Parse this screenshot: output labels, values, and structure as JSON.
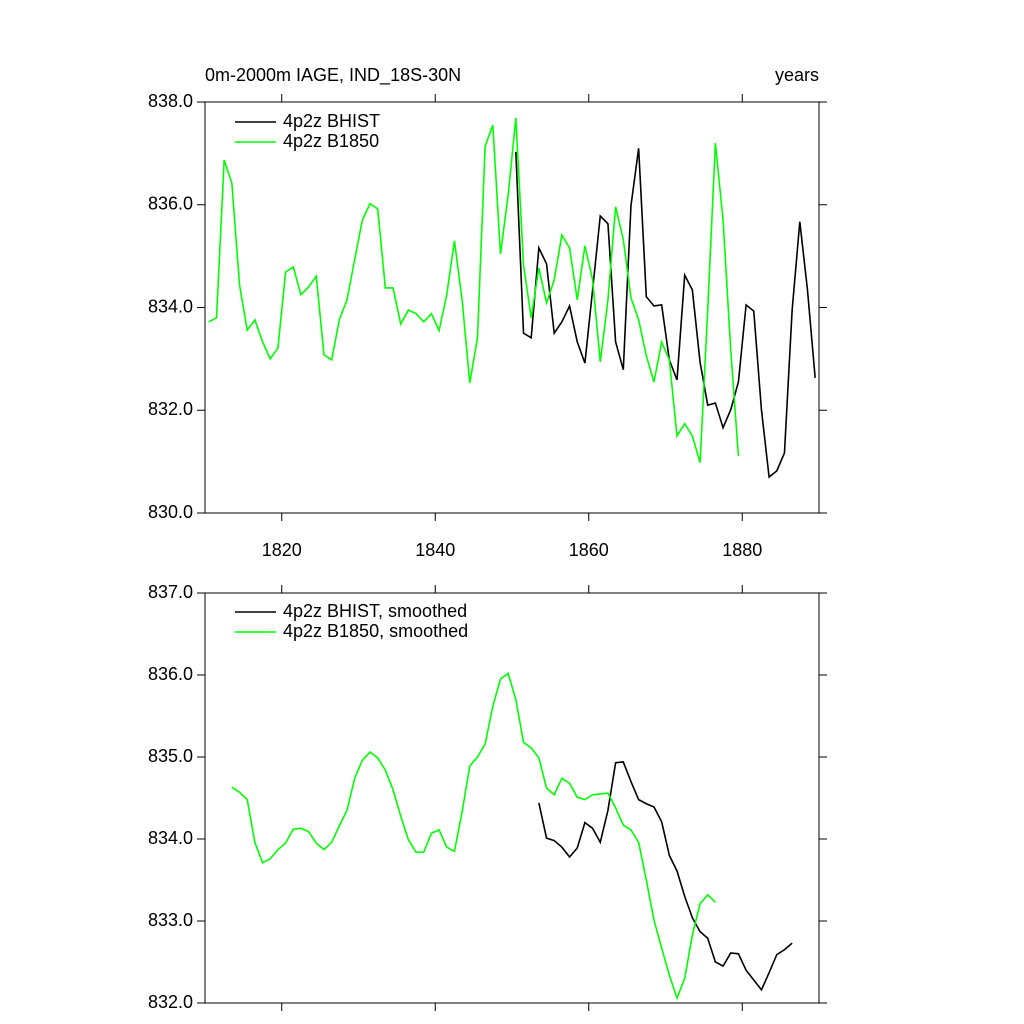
{
  "chart_data": [
    {
      "type": "line",
      "title": "0m-2000m IAGE, IND_18S-30N",
      "subtitle": "years",
      "xlim": [
        1810,
        1890
      ],
      "xticks": [
        1820,
        1840,
        1860,
        1880
      ],
      "ylim": [
        830,
        838
      ],
      "yticks": [
        {
          "value": 830,
          "label": "830.0"
        },
        {
          "value": 832,
          "label": "832.0"
        },
        {
          "value": 834,
          "label": "834.0"
        },
        {
          "value": 836,
          "label": "836.0"
        },
        {
          "value": 838,
          "label": "838.0"
        }
      ],
      "series": [
        {
          "name": "4p2z BHIST",
          "color": "#000000",
          "x": [
            1850.5,
            1851.5,
            1852.5,
            1853.5,
            1854.5,
            1855.5,
            1856.5,
            1857.5,
            1858.5,
            1859.5,
            1860.5,
            1861.5,
            1862.5,
            1863.5,
            1864.5,
            1865.5,
            1866.5,
            1867.5,
            1868.5,
            1869.5,
            1870.5,
            1871.5,
            1872.5,
            1873.5,
            1874.5,
            1875.5,
            1876.5,
            1877.5,
            1878.5,
            1879.5,
            1880.5,
            1881.5,
            1882.5,
            1883.5,
            1884.5,
            1885.5,
            1886.5,
            1887.5,
            1888.5,
            1889.5
          ],
          "values": [
            837.03,
            833.5,
            833.41,
            835.16,
            834.85,
            833.5,
            833.72,
            834.03,
            833.33,
            832.92,
            834.34,
            835.78,
            835.63,
            833.33,
            832.79,
            835.98,
            837.1,
            834.21,
            834.03,
            834.05,
            832.98,
            832.59,
            834.63,
            834.34,
            832.94,
            832.1,
            832.14,
            831.66,
            832.01,
            832.55,
            834.05,
            833.93,
            832.01,
            830.7,
            830.82,
            831.17,
            833.95,
            835.67,
            834.34,
            832.63
          ]
        },
        {
          "name": "4p2z B1850",
          "color": "#00ff00",
          "x": [
            1810.5,
            1811.5,
            1812.5,
            1813.5,
            1814.5,
            1815.5,
            1816.5,
            1817.5,
            1818.5,
            1819.5,
            1820.5,
            1821.5,
            1822.5,
            1823.5,
            1824.5,
            1825.5,
            1826.5,
            1827.5,
            1828.5,
            1829.5,
            1830.5,
            1831.5,
            1832.5,
            1833.5,
            1834.5,
            1835.5,
            1836.5,
            1837.5,
            1838.5,
            1839.5,
            1840.5,
            1841.5,
            1842.5,
            1843.5,
            1844.5,
            1845.5,
            1846.5,
            1847.5,
            1848.5,
            1849.5,
            1850.5,
            1851.5,
            1852.5,
            1853.5,
            1854.5,
            1855.5,
            1856.5,
            1857.5,
            1858.5,
            1859.5,
            1860.5,
            1861.5,
            1862.5,
            1863.5,
            1864.5,
            1865.5,
            1866.5,
            1867.5,
            1868.5,
            1869.5,
            1870.5,
            1871.5,
            1872.5,
            1873.5,
            1874.5,
            1875.5,
            1876.5,
            1877.5,
            1878.5,
            1879.5
          ],
          "values": [
            833.72,
            833.8,
            836.87,
            836.42,
            834.44,
            833.56,
            833.76,
            833.33,
            833.0,
            833.21,
            834.69,
            834.79,
            834.25,
            834.4,
            834.61,
            833.08,
            832.98,
            833.76,
            834.15,
            834.93,
            835.7,
            836.02,
            835.92,
            834.38,
            834.38,
            833.68,
            833.95,
            833.88,
            833.72,
            833.88,
            833.55,
            834.25,
            835.3,
            834.15,
            832.53,
            833.41,
            837.14,
            837.55,
            835.04,
            836.19,
            837.69,
            834.83,
            833.8,
            834.77,
            834.09,
            834.54,
            835.41,
            835.16,
            834.15,
            835.2,
            834.54,
            832.94,
            834.15,
            835.96,
            835.32,
            834.19,
            833.76,
            833.06,
            832.55,
            833.33,
            832.98,
            831.5,
            831.74,
            831.5,
            830.98,
            833.95,
            837.2,
            835.7,
            833.17,
            831.11
          ]
        }
      ]
    },
    {
      "type": "line",
      "xlim": [
        1810,
        1890
      ],
      "xticks": [
        1820,
        1840,
        1860,
        1880
      ],
      "ylim": [
        832,
        837
      ],
      "yticks": [
        {
          "value": 832,
          "label": "832.0"
        },
        {
          "value": 833,
          "label": "833.0"
        },
        {
          "value": 834,
          "label": "834.0"
        },
        {
          "value": 835,
          "label": "835.0"
        },
        {
          "value": 836,
          "label": "836.0"
        },
        {
          "value": 837,
          "label": "837.0"
        }
      ],
      "series": [
        {
          "name": "4p2z BHIST, smoothed",
          "color": "#000000",
          "x": [
            1853.5,
            1854.5,
            1855.5,
            1856.5,
            1857.5,
            1858.5,
            1859.5,
            1860.5,
            1861.5,
            1862.5,
            1863.5,
            1864.5,
            1865.5,
            1866.5,
            1867.5,
            1868.5,
            1869.5,
            1870.5,
            1871.5,
            1872.5,
            1873.5,
            1874.5,
            1875.5,
            1876.5,
            1877.5,
            1878.5,
            1879.5,
            1880.5,
            1881.5,
            1882.5,
            1883.5,
            1884.5,
            1885.5,
            1886.5
          ],
          "values": [
            834.44,
            834.01,
            833.98,
            833.9,
            833.78,
            833.89,
            834.2,
            834.13,
            833.96,
            834.35,
            834.93,
            834.94,
            834.7,
            834.48,
            834.43,
            834.39,
            834.21,
            833.8,
            833.61,
            833.3,
            833.04,
            832.87,
            832.79,
            832.5,
            832.45,
            832.61,
            832.6,
            832.4,
            832.28,
            832.16,
            832.37,
            832.59,
            832.65,
            832.73
          ]
        },
        {
          "name": "4p2z B1850, smoothed",
          "color": "#00ff00",
          "x": [
            1813.5,
            1814.5,
            1815.5,
            1816.5,
            1817.5,
            1818.5,
            1819.5,
            1820.5,
            1821.5,
            1822.5,
            1823.5,
            1824.5,
            1825.5,
            1826.5,
            1827.5,
            1828.5,
            1829.5,
            1830.5,
            1831.5,
            1832.5,
            1833.5,
            1834.5,
            1835.5,
            1836.5,
            1837.5,
            1838.5,
            1839.5,
            1840.5,
            1841.5,
            1842.5,
            1843.5,
            1844.5,
            1845.5,
            1846.5,
            1847.5,
            1848.5,
            1849.5,
            1850.5,
            1851.5,
            1852.5,
            1853.5,
            1854.5,
            1855.5,
            1856.5,
            1857.5,
            1858.5,
            1859.5,
            1860.5,
            1861.5,
            1862.5,
            1863.5,
            1864.5,
            1865.5,
            1866.5,
            1867.5,
            1868.5,
            1869.5,
            1870.5,
            1871.5,
            1872.5,
            1873.5,
            1874.5,
            1875.5,
            1876.5
          ],
          "values": [
            834.63,
            834.57,
            834.48,
            833.96,
            833.71,
            833.76,
            833.87,
            833.95,
            834.12,
            834.13,
            834.09,
            833.95,
            833.87,
            833.96,
            834.16,
            834.35,
            834.74,
            834.96,
            835.06,
            834.99,
            834.84,
            834.6,
            834.28,
            833.99,
            833.84,
            833.84,
            834.07,
            834.11,
            833.9,
            833.85,
            834.33,
            834.89,
            835.0,
            835.16,
            835.62,
            835.95,
            836.02,
            835.7,
            835.18,
            835.11,
            834.99,
            834.62,
            834.54,
            834.74,
            834.68,
            834.51,
            834.48,
            834.54,
            834.55,
            834.56,
            834.38,
            834.17,
            834.11,
            833.96,
            833.5,
            833.01,
            832.67,
            832.34,
            832.06,
            832.3,
            832.83,
            833.21,
            833.32,
            833.23
          ]
        }
      ]
    }
  ]
}
